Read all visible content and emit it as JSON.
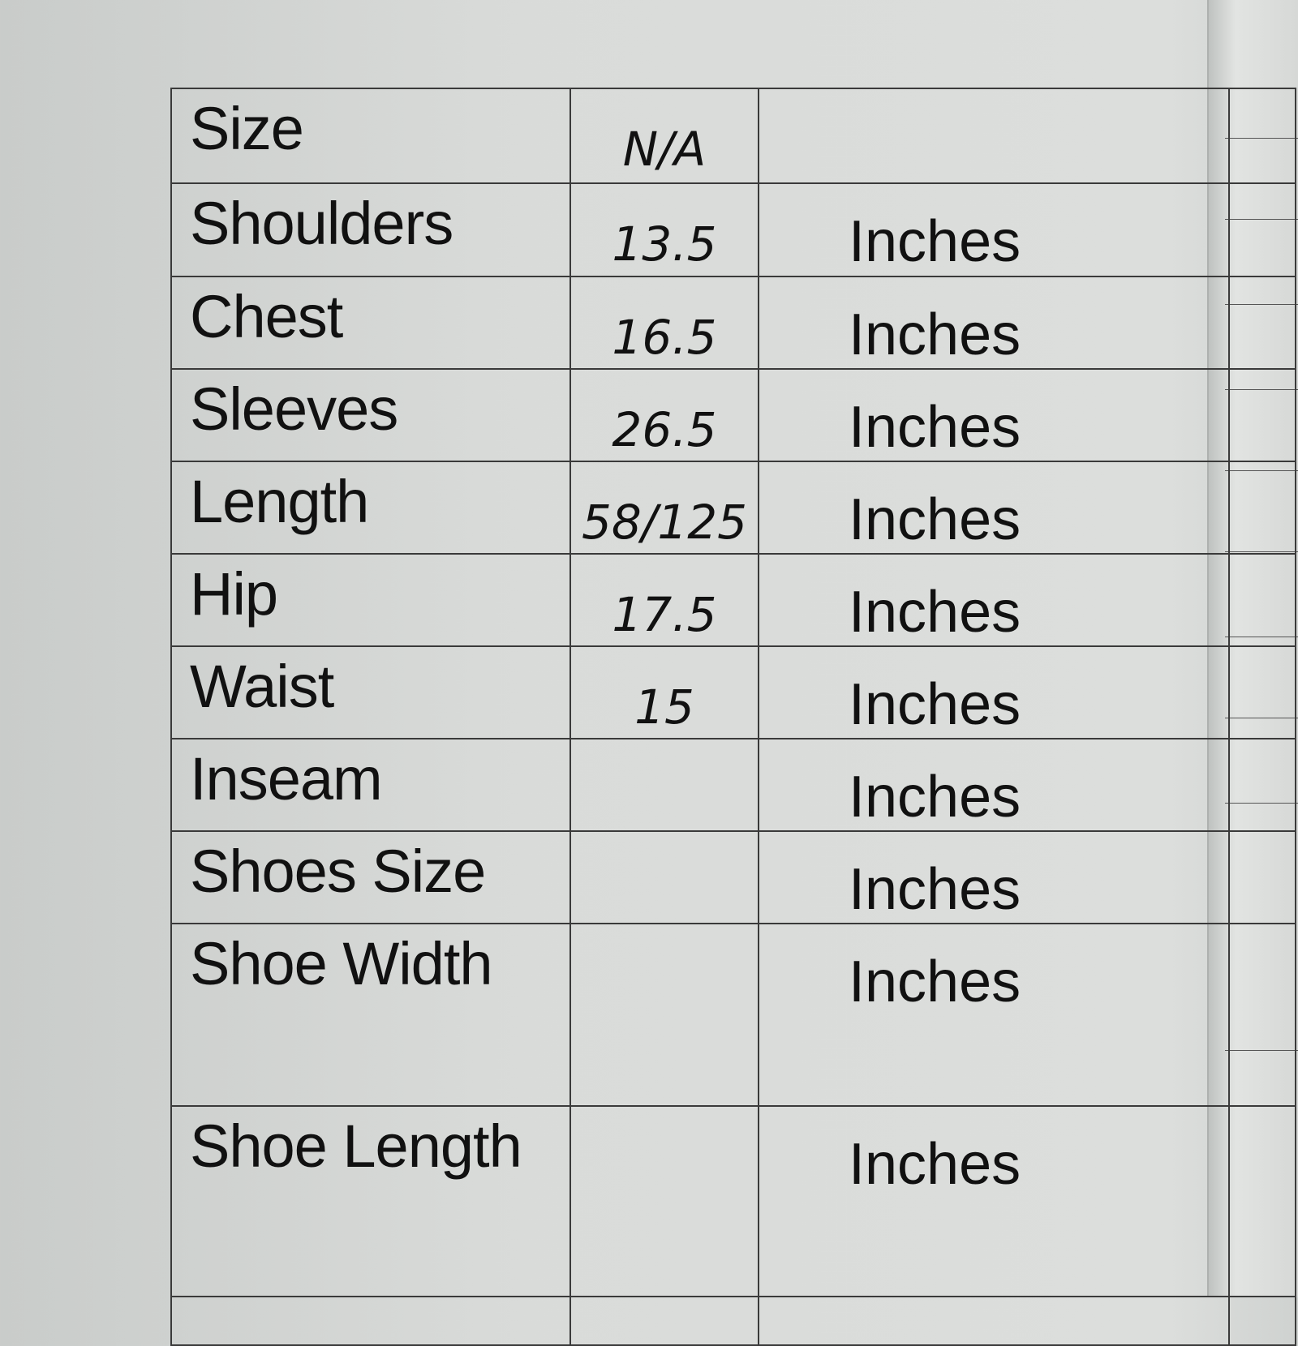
{
  "rows": [
    {
      "label": "Size",
      "value": "N/A",
      "unit": ""
    },
    {
      "label": "Shoulders",
      "value": "13.5",
      "unit": "Inches"
    },
    {
      "label": "Chest",
      "value": "16.5",
      "unit": "Inches"
    },
    {
      "label": "Sleeves",
      "value": "26.5",
      "unit": "Inches"
    },
    {
      "label": "Length",
      "value": "58/125",
      "unit": "Inches"
    },
    {
      "label": "Hip",
      "value": "17.5",
      "unit": "Inches"
    },
    {
      "label": "Waist",
      "value": "15",
      "unit": "Inches"
    },
    {
      "label": "Inseam",
      "value": "",
      "unit": "Inches"
    },
    {
      "label": "Shoes Size",
      "value": "",
      "unit": "Inches"
    },
    {
      "label": "Shoe Width",
      "value": "",
      "unit": "Inches"
    },
    {
      "label": "Shoe Length",
      "value": "",
      "unit": "Inches"
    }
  ]
}
